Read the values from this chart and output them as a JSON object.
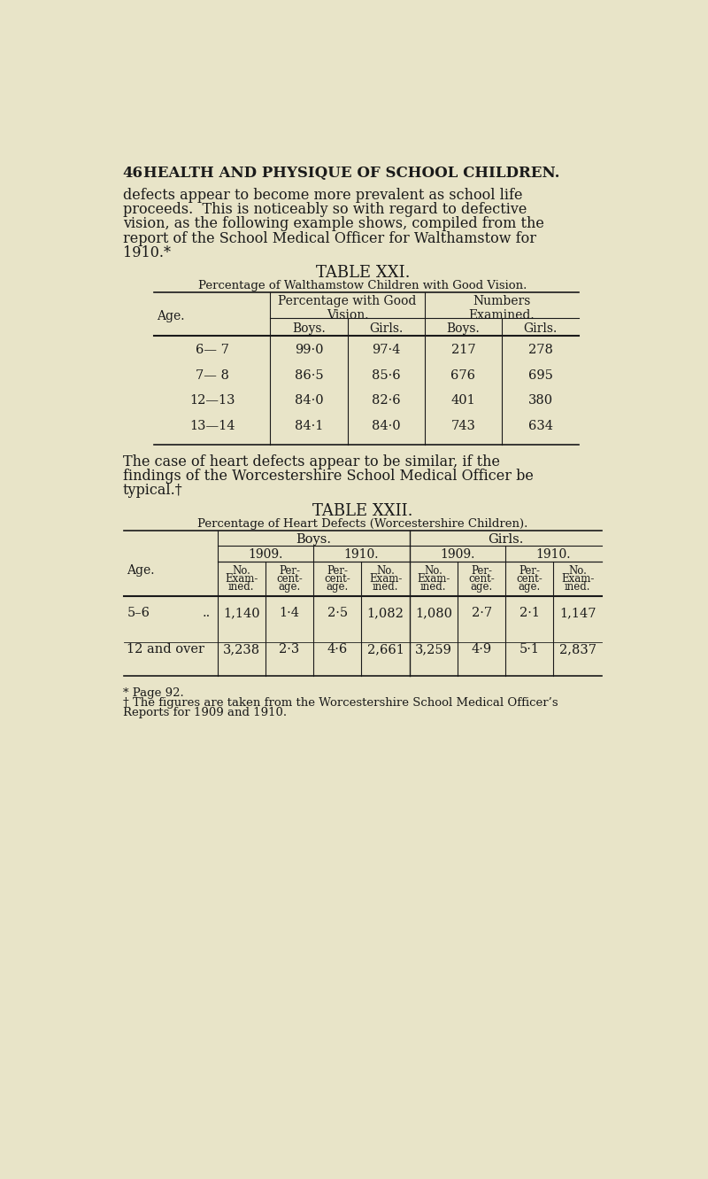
{
  "bg_color": "#e8e4c8",
  "text_color": "#1a1a1a",
  "page_number": "46",
  "page_title": "HEALTH AND PHYSIQUE OF SCHOOL CHILDREN.",
  "para1_lines": [
    "defects appear to become more prevalent as school life",
    "proceeds.  This is noticeably so with regard to defective",
    "vision, as the following example shows, compiled from the",
    "report of the School Medical Officer for Walthamstow for",
    "1910.*"
  ],
  "table1_title": "TABLE XXI.",
  "table1_subtitle": "Percentage of Walthamstow Children with Good Vision.",
  "table1_rows": [
    [
      "6— 7",
      "99·0",
      "97·4",
      "217",
      "278"
    ],
    [
      "7— 8",
      "86·5",
      "85·6",
      "676",
      "695"
    ],
    [
      "12—13",
      "84·0",
      "82·6",
      "401",
      "380"
    ],
    [
      "13—14",
      "84·1",
      "84·0",
      "743",
      "634"
    ]
  ],
  "para2_lines": [
    "The case of heart defects appear to be similar, if the",
    "findings of the Worcestershire School Medical Officer be",
    "typical.†"
  ],
  "table2_title": "TABLE XXII.",
  "table2_subtitle": "Percentage of Heart Defects (Worcestershire Children).",
  "table2_rows": [
    [
      "5–6",
      "..",
      "1,140",
      "1·4",
      "2·5",
      "1,082",
      "1,080",
      "2·7",
      "2·1",
      "1,147"
    ],
    [
      "12 and over",
      "",
      "3,238",
      "2·3",
      "4·6",
      "2,661",
      "3,259",
      "4·9",
      "5·1",
      "2,837"
    ]
  ],
  "footnote1": "* Page 92.",
  "footnote2_lines": [
    "† The figures are taken from the Worcestershire School Medical Officer’s",
    "Reports for 1909 and 1910."
  ]
}
